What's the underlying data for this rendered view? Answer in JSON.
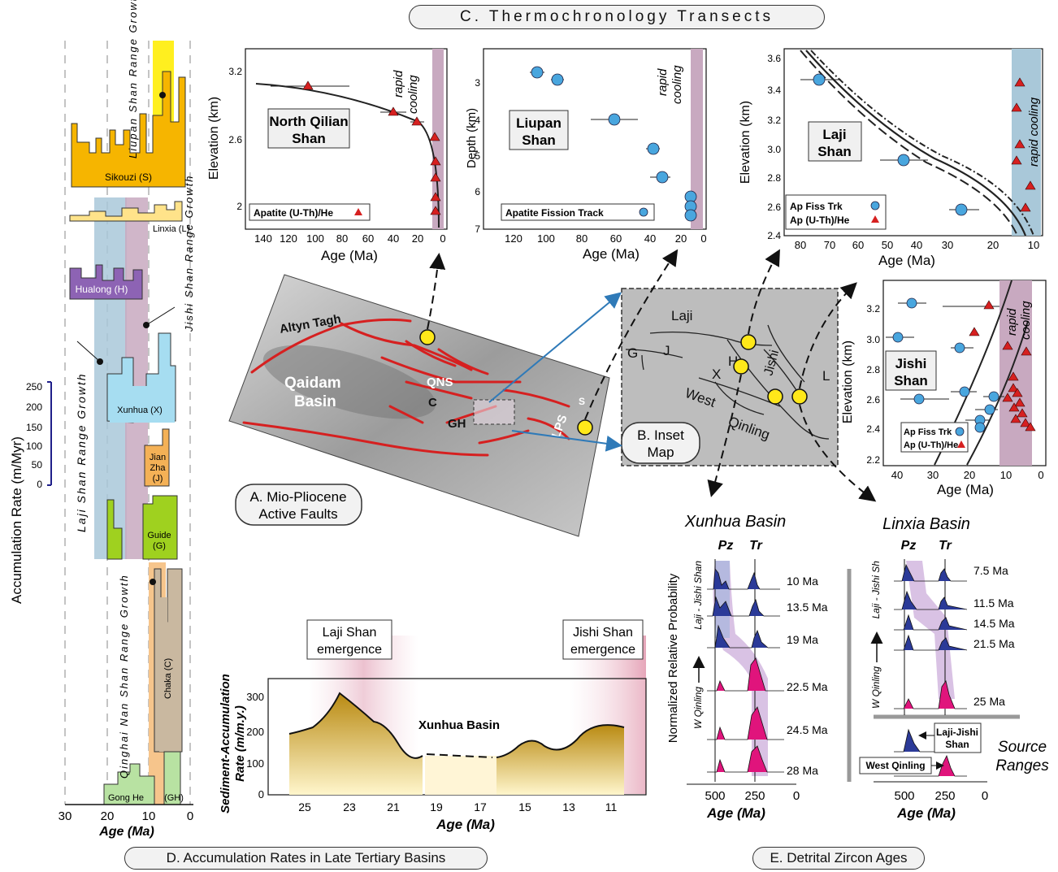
{
  "panels": {
    "c_title": "C. Thermochronology Transects",
    "a_title_1": "A. Mio-Pliocene",
    "a_title_2": "Active Faults",
    "b_title_1": "B. Inset",
    "b_title_2": "Map",
    "d_title": "D. Accumulation  Rates in Late Tertiary Basins",
    "e_title": "E. Detrital Zircon Ages"
  },
  "left_column": {
    "y_axis_label": "Accumulation Rate (m/Myr)",
    "y_ticks": [
      "250",
      "200",
      "150",
      "100",
      "50",
      "0"
    ],
    "x_ticks": [
      "30",
      "20",
      "10",
      "0"
    ],
    "x_label": "Age (Ma)",
    "basins": [
      "Sikouzi (S)",
      "Linxia  (L)",
      "Hualong (H)",
      "Xunhua (X)",
      "Jian",
      "Zha",
      "(J)",
      "Guide",
      "(G)",
      "Chaka (C)",
      "Gong He",
      "(GH)"
    ],
    "growth_labels": [
      "Liupan Shan Range Growth",
      "Jishi Shan Range Growth",
      "Laji Shan Range Growth",
      "Qinghai Nan Shan Range Growth"
    ]
  },
  "thermo": {
    "north_qilian": {
      "title1": "North Qilian",
      "title2": "Shan",
      "ylabel": "Elevation (km)",
      "xlabel": "Age (Ma)",
      "yticks": [
        "3.2",
        "2.6",
        "2"
      ],
      "xticks": [
        "140",
        "120",
        "100",
        "80",
        "60",
        "40",
        "20",
        "0"
      ],
      "legend": "Apatite (U-Th)/He",
      "note1": "rapid",
      "note2": "cooling"
    },
    "liupan": {
      "title1": "Liupan",
      "title2": "Shan",
      "ylabel": "Depth (km)",
      "xlabel": "Age (Ma)",
      "yticks": [
        "3",
        "4",
        "5",
        "6",
        "7"
      ],
      "xticks": [
        "120",
        "100",
        "80",
        "60",
        "40",
        "20",
        "0"
      ],
      "legend": "Apatite Fission Track",
      "note1": "rapid",
      "note2": "cooling"
    },
    "laji": {
      "title1": "Laji",
      "title2": "Shan",
      "ylabel": "Elevation (km)",
      "xlabel": "Age (Ma)",
      "yticks": [
        "3.6",
        "3.4",
        "3.2",
        "3.0",
        "2.8",
        "2.6",
        "2.4"
      ],
      "xticks": [
        "80",
        "70",
        "60",
        "50",
        "40",
        "30",
        "20",
        "10"
      ],
      "legend1": "Ap Fiss Trk",
      "legend2": "Ap (U-Th)/He",
      "note": "rapid cooling"
    },
    "jishi": {
      "title1": "Jishi",
      "title2": "Shan",
      "ylabel": "Elevation (km)",
      "xlabel": "Age (Ma)",
      "yticks": [
        "3.2",
        "3.0",
        "2.8",
        "2.6",
        "2.4",
        "2.2"
      ],
      "xticks": [
        "40",
        "30",
        "20",
        "10",
        "0"
      ],
      "legend1": "Ap Fiss Trk",
      "legend2": "Ap (U-Th)/He",
      "note1": "rapid",
      "note2": "cooling"
    }
  },
  "map": {
    "labels": [
      "Altyn Tagh",
      "Qaidam",
      "Basin",
      "QNS",
      "C",
      "GH",
      "LPS",
      "S"
    ],
    "inset_labels": [
      "Laji",
      "Jishi",
      "G",
      "J",
      "H",
      "X",
      "L",
      "West",
      "Qinling"
    ]
  },
  "accum_chart": {
    "title": "Xunhua Basin",
    "ylabel1": "Sediment-Accumulation",
    "ylabel2": "Rate (m/m.y.)",
    "xlabel": "Age (Ma)",
    "yticks": [
      "300",
      "200",
      "100",
      "0"
    ],
    "xticks": [
      "25",
      "23",
      "21",
      "19",
      "17",
      "15",
      "13",
      "11"
    ],
    "laji_em_1": "Laji Shan",
    "laji_em_2": "emergence",
    "jishi_em_1": "Jishi Shan",
    "jishi_em_2": "emergence"
  },
  "zircon": {
    "xunhua_title": "Xunhua Basin",
    "linxia_title": "Linxia Basin",
    "pz": "Pz",
    "tr": "Tr",
    "ylabel": "Normalized Relative Probability",
    "xlabel": "Age (Ma)",
    "xticks": [
      "500",
      "250",
      "0"
    ],
    "xunhua_ages": [
      "10 Ma",
      "13.5 Ma",
      "19 Ma",
      "22.5 Ma",
      "24.5 Ma",
      "28 Ma"
    ],
    "linxia_ages": [
      "7.5 Ma",
      "11.5 Ma",
      "14.5 Ma",
      "21.5 Ma",
      "25 Ma"
    ],
    "xunhua_side_top": "Laji - Jishi Shan",
    "xunhua_side_bot": "W Qinling",
    "linxia_side_top": "Laji - Jishi Sh",
    "linxia_side_bot": "W Qinling",
    "src_laji1": "Laji-Jishi",
    "src_laji2": "Shan",
    "src_west": "West Qinling",
    "src_label1": "Source",
    "src_label2": "Ranges"
  },
  "colors": {
    "red": "#d62020",
    "yellow": "#ffe81a",
    "blue_pt": "#49a6de",
    "purple_band": "#c7a7bf",
    "blue_band": "#a9c8d9"
  }
}
